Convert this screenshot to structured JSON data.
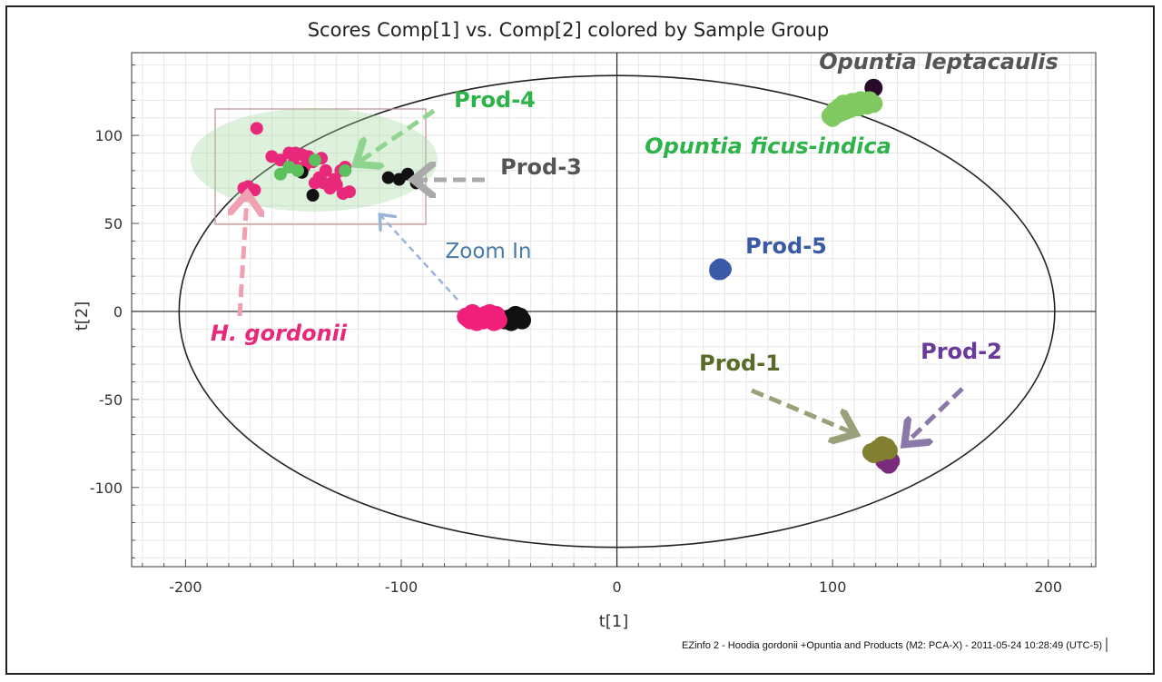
{
  "chart_data": {
    "type": "scatter",
    "title": "Scores Comp[1] vs. Comp[2] colored by Sample Group",
    "xlabel": "t[1]",
    "ylabel": "t[2]",
    "xlim": [
      -225,
      222
    ],
    "ylim": [
      -145,
      147
    ],
    "xticks": [
      -200,
      -100,
      0,
      100,
      200
    ],
    "yticks": [
      -100,
      -50,
      0,
      50,
      100
    ],
    "grid": true,
    "hotelling_ellipse": {
      "cx": 0,
      "cy": 0,
      "rx": 203,
      "ry": 134
    },
    "colors": {
      "h_gordonii": "#e8287a",
      "black": "#111111",
      "prod4": "#5cc05c",
      "ficus": "#7cc45a",
      "leptacaulis": "#2a0a2a",
      "prod5": "#3a5aa8",
      "prod1": "#7a7a30",
      "prod2": "#7a2a7a"
    },
    "series": [
      {
        "name": "",
        "color": "#111111",
        "points": [
          [
            -50,
            -4
          ],
          [
            -48,
            -3
          ],
          [
            -46,
            -4
          ],
          [
            -44,
            -5
          ],
          [
            -52,
            -5
          ],
          [
            -49,
            -6
          ],
          [
            -47,
            -2
          ],
          [
            -54,
            -4
          ],
          [
            -45,
            -3
          ]
        ]
      },
      {
        "name": "",
        "color": "#f0207a",
        "points": [
          [
            -70,
            -3
          ],
          [
            -68,
            -5
          ],
          [
            -66,
            -2
          ],
          [
            -64,
            -4
          ],
          [
            -62,
            -5
          ],
          [
            -60,
            -3
          ],
          [
            -58,
            -4
          ],
          [
            -56,
            -2
          ],
          [
            -55,
            -5
          ],
          [
            -69,
            -4
          ],
          [
            -65,
            -6
          ],
          [
            -61,
            -2
          ],
          [
            -57,
            -6
          ],
          [
            -67,
            -1
          ],
          [
            -63,
            -3
          ],
          [
            -59,
            -1
          ]
        ]
      },
      {
        "name": "",
        "color": "#2a0a2a",
        "points": [
          [
            119,
            127
          ]
        ]
      },
      {
        "name": "",
        "color": "#80c860",
        "points": [
          [
            99,
            111
          ],
          [
            101,
            114
          ],
          [
            103,
            116
          ],
          [
            105,
            118
          ],
          [
            107,
            117
          ],
          [
            109,
            119
          ],
          [
            111,
            118
          ],
          [
            113,
            120
          ],
          [
            115,
            118
          ],
          [
            117,
            120
          ],
          [
            119,
            118
          ],
          [
            100,
            110
          ],
          [
            104,
            113
          ],
          [
            108,
            115
          ],
          [
            112,
            116
          ],
          [
            116,
            117
          ],
          [
            102,
            112
          ],
          [
            106,
            114
          ],
          [
            110,
            117
          ],
          [
            114,
            118
          ]
        ]
      },
      {
        "name": "",
        "color": "#3a5aa8",
        "points": [
          [
            47,
            24
          ],
          [
            48,
            23
          ],
          [
            49,
            24
          ],
          [
            48,
            25
          ],
          [
            47,
            23
          ]
        ]
      },
      {
        "name": "",
        "color": "#7a2a7a",
        "points": [
          [
            124,
            -85
          ],
          [
            126,
            -87
          ],
          [
            125,
            -83
          ],
          [
            127,
            -85
          ]
        ]
      },
      {
        "name": "",
        "color": "#808030",
        "points": [
          [
            118,
            -80
          ],
          [
            120,
            -79
          ],
          [
            122,
            -80
          ],
          [
            124,
            -78
          ],
          [
            126,
            -79
          ],
          [
            123,
            -76
          ],
          [
            121,
            -78
          ],
          [
            125,
            -77
          ],
          [
            119,
            -81
          ]
        ]
      },
      {
        "name": "",
        "color": "#e8287a",
        "points": [
          [
            -167,
            104
          ],
          [
            -173,
            70
          ],
          [
            -171,
            71
          ],
          [
            -168,
            69
          ],
          [
            -160,
            88
          ],
          [
            -156,
            86
          ],
          [
            -152,
            90
          ],
          [
            -149,
            90
          ],
          [
            -146,
            89
          ],
          [
            -143,
            88
          ],
          [
            -141,
            85
          ],
          [
            -138,
            76
          ],
          [
            -136,
            73
          ],
          [
            -133,
            70
          ],
          [
            -131,
            75
          ],
          [
            -128,
            80
          ],
          [
            -126,
            82
          ],
          [
            -124,
            68
          ],
          [
            -127,
            67
          ],
          [
            -140,
            73
          ],
          [
            -135,
            80
          ],
          [
            -130,
            72
          ],
          [
            -150,
            84
          ],
          [
            -145,
            82
          ],
          [
            -137,
            87
          ]
        ]
      },
      {
        "name": "",
        "color": "#111111",
        "points": [
          [
            -146,
            79
          ],
          [
            -141,
            66
          ],
          [
            -106,
            76
          ],
          [
            -101,
            75
          ],
          [
            -97,
            78
          ],
          [
            -93,
            73
          ]
        ]
      },
      {
        "name": "",
        "color": "#5cc05c",
        "points": [
          [
            -152,
            82
          ],
          [
            -148,
            80
          ],
          [
            -140,
            86
          ],
          [
            -126,
            80
          ],
          [
            -156,
            78
          ]
        ]
      }
    ],
    "annotations": [
      {
        "text": "Opuntia leptacaulis",
        "color": "#555555"
      },
      {
        "text": "Prod-4",
        "color": "#2db34a"
      },
      {
        "text": "Opuntia ficus-indica",
        "color": "#2db34a"
      },
      {
        "text": "Prod-3",
        "color": "#555555"
      },
      {
        "text": "Zoom In",
        "color": "#4a7aa8"
      },
      {
        "text": "Prod-5",
        "color": "#3a5aa8"
      },
      {
        "text": "H. gordonii",
        "color": "#e8287a"
      },
      {
        "text": "Prod-1",
        "color": "#5a6a2a"
      },
      {
        "text": "Prod-2",
        "color": "#6a3a9a"
      }
    ]
  },
  "footer": "EZinfo 2 - Hoodia gordonii +Opuntia and Products (M2: PCA-X) - 2011-05-24 10:28:49 (UTC-5)"
}
